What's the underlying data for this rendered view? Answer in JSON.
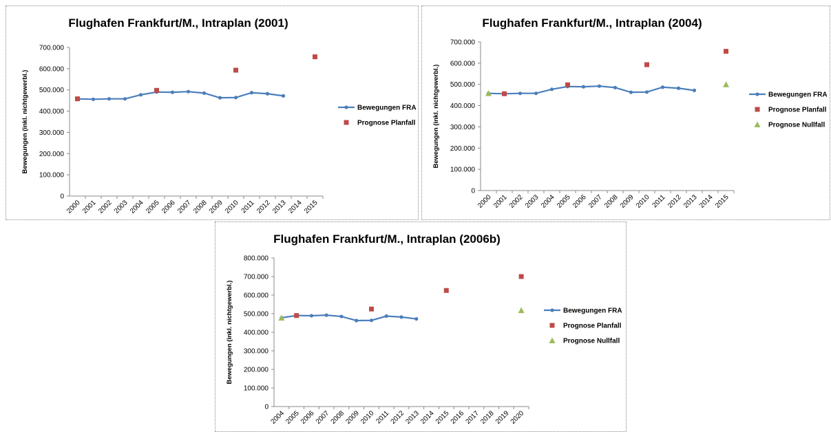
{
  "chart_data": [
    {
      "type": "line",
      "title": "Flughafen Frankfurt/M., Intraplan (2001)",
      "y_label": "Bewegungen (inkl. nichtgewerbl.)",
      "categories": [
        "2000",
        "2001",
        "2002",
        "2003",
        "2004",
        "2005",
        "2006",
        "2007",
        "2008",
        "2009",
        "2010",
        "2011",
        "2012",
        "2013",
        "2014",
        "2015"
      ],
      "ylim": [
        0,
        700000
      ],
      "yticks": [
        0,
        {
          "value": 100000,
          "label": "100.000"
        },
        {
          "value": 200000,
          "label": "200.000"
        },
        {
          "value": 300000,
          "label": "300.000"
        },
        {
          "value": 400000,
          "label": "400.000"
        },
        {
          "value": 500000,
          "label": "500.000"
        },
        {
          "value": 600000,
          "label": "600.000"
        },
        {
          "value": 700000,
          "label": "700.000"
        }
      ],
      "legend": "right",
      "series": [
        {
          "name": "Bewegungen FRA",
          "color": "#4a7ebb",
          "marker": "circle",
          "line": true,
          "values": [
            458000,
            456000,
            458000,
            458000,
            477000,
            490000,
            489000,
            492000,
            485000,
            463000,
            464000,
            487000,
            482000,
            472000,
            null,
            null
          ]
        },
        {
          "name": "Prognose Planfall",
          "color": "#be4b48",
          "marker": "square",
          "line": false,
          "values": [
            458000,
            null,
            null,
            null,
            null,
            498000,
            null,
            null,
            null,
            null,
            593000,
            null,
            null,
            null,
            null,
            656000
          ]
        }
      ]
    },
    {
      "type": "line",
      "title": "Flughafen Frankfurt/M., Intraplan (2004)",
      "y_label": "Bewegungen (inkl. nichtgewerbl.)",
      "categories": [
        "2000",
        "2001",
        "2002",
        "2003",
        "2004",
        "2005",
        "2006",
        "2007",
        "2008",
        "2009",
        "2010",
        "2011",
        "2012",
        "2013",
        "2014",
        "2015"
      ],
      "ylim": [
        0,
        700000
      ],
      "yticks": [
        0,
        {
          "value": 100000,
          "label": "100.000"
        },
        {
          "value": 200000,
          "label": "200.000"
        },
        {
          "value": 300000,
          "label": "300.000"
        },
        {
          "value": 400000,
          "label": "400.000"
        },
        {
          "value": 500000,
          "label": "500.000"
        },
        {
          "value": 600000,
          "label": "600.000"
        },
        {
          "value": 700000,
          "label": "700.000"
        }
      ],
      "legend": "right",
      "series": [
        {
          "name": "Bewegungen FRA",
          "color": "#4a7ebb",
          "marker": "circle",
          "line": true,
          "values": [
            458000,
            456000,
            458000,
            458000,
            477000,
            490000,
            489000,
            492000,
            485000,
            463000,
            464000,
            487000,
            482000,
            472000,
            null,
            null
          ]
        },
        {
          "name": "Prognose Planfall",
          "color": "#be4b48",
          "marker": "square",
          "line": false,
          "values": [
            null,
            456000,
            null,
            null,
            null,
            498000,
            null,
            null,
            null,
            null,
            593000,
            null,
            null,
            null,
            null,
            656000
          ]
        },
        {
          "name": "Prognose Nullfall",
          "color": "#9bbb59",
          "marker": "triangle",
          "line": false,
          "values": [
            458000,
            null,
            null,
            null,
            null,
            null,
            null,
            null,
            null,
            null,
            null,
            null,
            null,
            null,
            null,
            500000
          ]
        }
      ]
    },
    {
      "type": "line",
      "title": "Flughafen Frankfurt/M., Intraplan (2006b)",
      "y_label": "Bewegungen (inkl. nichtgewerbl.)",
      "categories": [
        "2004",
        "2005",
        "2006",
        "2007",
        "2008",
        "2009",
        "2010",
        "2011",
        "2012",
        "2013",
        "2014",
        "2015",
        "2016",
        "2017",
        "2018",
        "2019",
        "2020"
      ],
      "ylim": [
        0,
        800000
      ],
      "yticks": [
        0,
        {
          "value": 100000,
          "label": "100.000"
        },
        {
          "value": 200000,
          "label": "200.000"
        },
        {
          "value": 300000,
          "label": "300.000"
        },
        {
          "value": 400000,
          "label": "400.000"
        },
        {
          "value": 500000,
          "label": "500.000"
        },
        {
          "value": 600000,
          "label": "600.000"
        },
        {
          "value": 700000,
          "label": "700.000"
        },
        {
          "value": 800000,
          "label": "800.000"
        }
      ],
      "legend": "right",
      "series": [
        {
          "name": "Bewegungen FRA",
          "color": "#4a7ebb",
          "marker": "circle",
          "line": true,
          "values": [
            478000,
            490000,
            489000,
            492000,
            485000,
            463000,
            464000,
            487000,
            482000,
            472000,
            null,
            null,
            null,
            null,
            null,
            null,
            null
          ]
        },
        {
          "name": "Prognose Planfall",
          "color": "#be4b48",
          "marker": "square",
          "line": false,
          "values": [
            null,
            490000,
            null,
            null,
            null,
            null,
            525000,
            null,
            null,
            null,
            null,
            625000,
            null,
            null,
            null,
            null,
            700000
          ]
        },
        {
          "name": "Prognose Nullfall",
          "color": "#9bbb59",
          "marker": "triangle",
          "line": false,
          "values": [
            478000,
            null,
            null,
            null,
            null,
            null,
            null,
            null,
            null,
            null,
            null,
            null,
            null,
            null,
            null,
            null,
            518000
          ]
        }
      ]
    }
  ]
}
